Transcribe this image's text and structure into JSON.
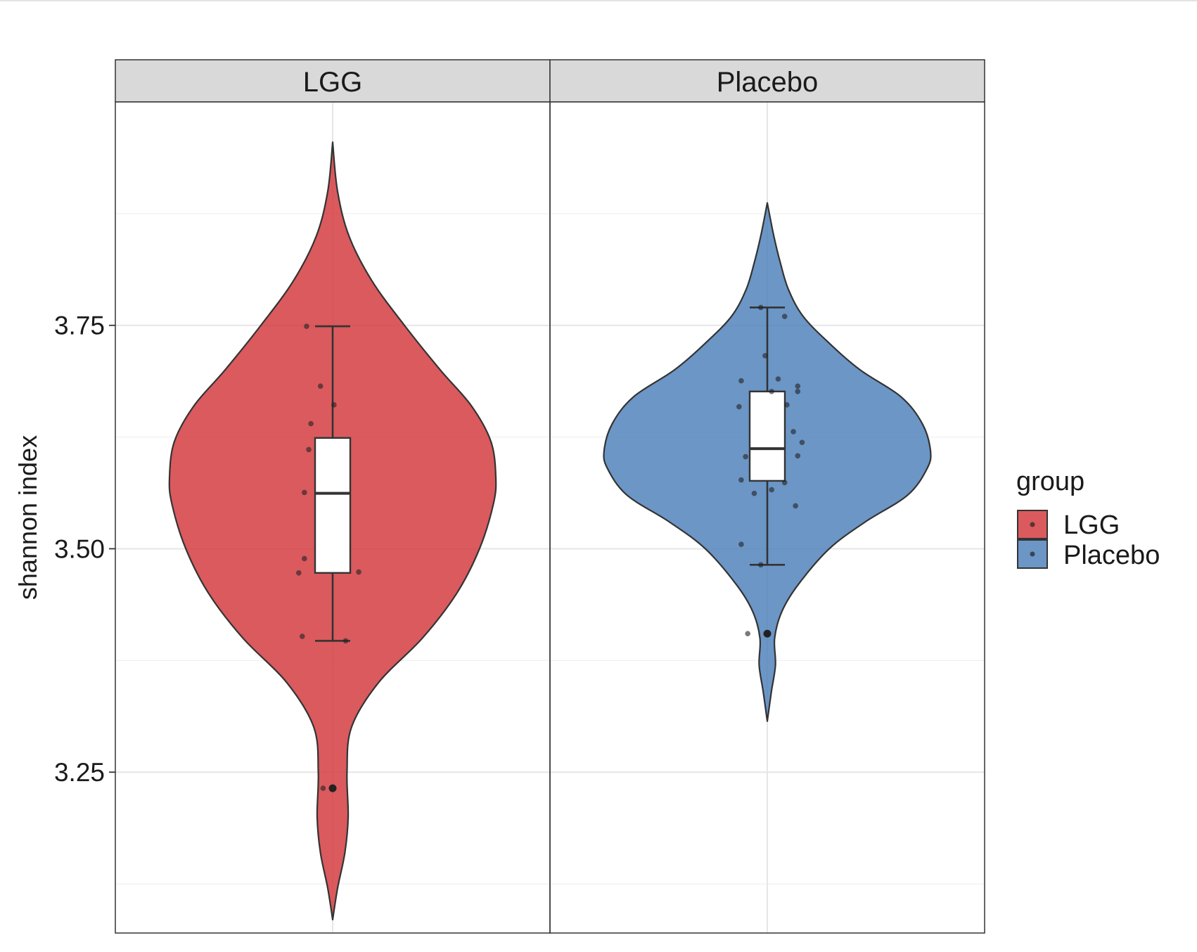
{
  "chart_data": {
    "type": "violin",
    "title": "",
    "xlabel": "",
    "ylabel": "shannon index",
    "ylim": [
      3.07,
      4.0
    ],
    "yticks": [
      3.25,
      3.5,
      3.75
    ],
    "ytick_labels": [
      "3.25",
      "3.50",
      "3.75"
    ],
    "grid": true,
    "legend": {
      "title": "group",
      "placement": "right",
      "entries": [
        "LGG",
        "Placebo"
      ]
    },
    "panels": [
      {
        "name": "LGG",
        "color": "#d2363b",
        "violin_range": [
          3.085,
          3.955
        ],
        "violin_profile": [
          [
            3.085,
            0.0
          ],
          [
            3.12,
            0.03
          ],
          [
            3.16,
            0.075
          ],
          [
            3.2,
            0.095
          ],
          [
            3.25,
            0.088
          ],
          [
            3.3,
            0.115
          ],
          [
            3.35,
            0.28
          ],
          [
            3.4,
            0.55
          ],
          [
            3.45,
            0.76
          ],
          [
            3.5,
            0.9
          ],
          [
            3.55,
            0.985
          ],
          [
            3.58,
            1.0
          ],
          [
            3.62,
            0.97
          ],
          [
            3.66,
            0.85
          ],
          [
            3.7,
            0.66
          ],
          [
            3.75,
            0.44
          ],
          [
            3.8,
            0.24
          ],
          [
            3.85,
            0.1
          ],
          [
            3.9,
            0.03
          ],
          [
            3.955,
            0.0
          ]
        ],
        "box": {
          "q1": 3.473,
          "median": 3.562,
          "q3": 3.624,
          "whisker_low": 3.397,
          "whisker_high": 3.749
        },
        "outliers": [
          3.232
        ],
        "points": [
          {
            "dx": -0.06,
            "y": 3.749
          },
          {
            "dx": -0.028,
            "y": 3.682
          },
          {
            "dx": 0.003,
            "y": 3.661
          },
          {
            "dx": -0.05,
            "y": 3.64
          },
          {
            "dx": -0.055,
            "y": 3.611
          },
          {
            "dx": -0.065,
            "y": 3.563
          },
          {
            "dx": -0.065,
            "y": 3.489
          },
          {
            "dx": -0.078,
            "y": 3.473
          },
          {
            "dx": 0.06,
            "y": 3.474
          },
          {
            "dx": -0.07,
            "y": 3.402
          },
          {
            "dx": 0.03,
            "y": 3.397
          },
          {
            "dx": -0.022,
            "y": 3.232
          }
        ]
      },
      {
        "name": "Placebo",
        "color": "#4a7fba",
        "violin_range": [
          3.307,
          3.887
        ],
        "violin_profile": [
          [
            3.307,
            0.0
          ],
          [
            3.34,
            0.025
          ],
          [
            3.37,
            0.05
          ],
          [
            3.4,
            0.045
          ],
          [
            3.43,
            0.09
          ],
          [
            3.46,
            0.19
          ],
          [
            3.5,
            0.38
          ],
          [
            3.53,
            0.6
          ],
          [
            3.56,
            0.86
          ],
          [
            3.59,
            0.98
          ],
          [
            3.61,
            1.0
          ],
          [
            3.64,
            0.95
          ],
          [
            3.67,
            0.82
          ],
          [
            3.7,
            0.57
          ],
          [
            3.73,
            0.38
          ],
          [
            3.76,
            0.22
          ],
          [
            3.79,
            0.13
          ],
          [
            3.82,
            0.08
          ],
          [
            3.85,
            0.04
          ],
          [
            3.887,
            0.0
          ]
        ],
        "box": {
          "q1": 3.576,
          "median": 3.612,
          "q3": 3.676,
          "whisker_low": 3.482,
          "whisker_high": 3.77
        },
        "outliers": [
          3.405
        ],
        "points": [
          {
            "dx": -0.015,
            "y": 3.77
          },
          {
            "dx": 0.04,
            "y": 3.76
          },
          {
            "dx": -0.005,
            "y": 3.716
          },
          {
            "dx": -0.06,
            "y": 3.688
          },
          {
            "dx": 0.025,
            "y": 3.69
          },
          {
            "dx": 0.07,
            "y": 3.682
          },
          {
            "dx": 0.01,
            "y": 3.676
          },
          {
            "dx": 0.07,
            "y": 3.676
          },
          {
            "dx": -0.065,
            "y": 3.659
          },
          {
            "dx": 0.045,
            "y": 3.661
          },
          {
            "dx": 0.06,
            "y": 3.631
          },
          {
            "dx": 0.08,
            "y": 3.619
          },
          {
            "dx": -0.05,
            "y": 3.603
          },
          {
            "dx": 0.07,
            "y": 3.604
          },
          {
            "dx": -0.06,
            "y": 3.577
          },
          {
            "dx": 0.04,
            "y": 3.574
          },
          {
            "dx": -0.03,
            "y": 3.562
          },
          {
            "dx": 0.01,
            "y": 3.566
          },
          {
            "dx": 0.065,
            "y": 3.548
          },
          {
            "dx": -0.06,
            "y": 3.505
          },
          {
            "dx": -0.015,
            "y": 3.482
          },
          {
            "dx": -0.045,
            "y": 3.405
          },
          {
            "dx": 0.0,
            "y": 3.405
          }
        ]
      }
    ]
  }
}
